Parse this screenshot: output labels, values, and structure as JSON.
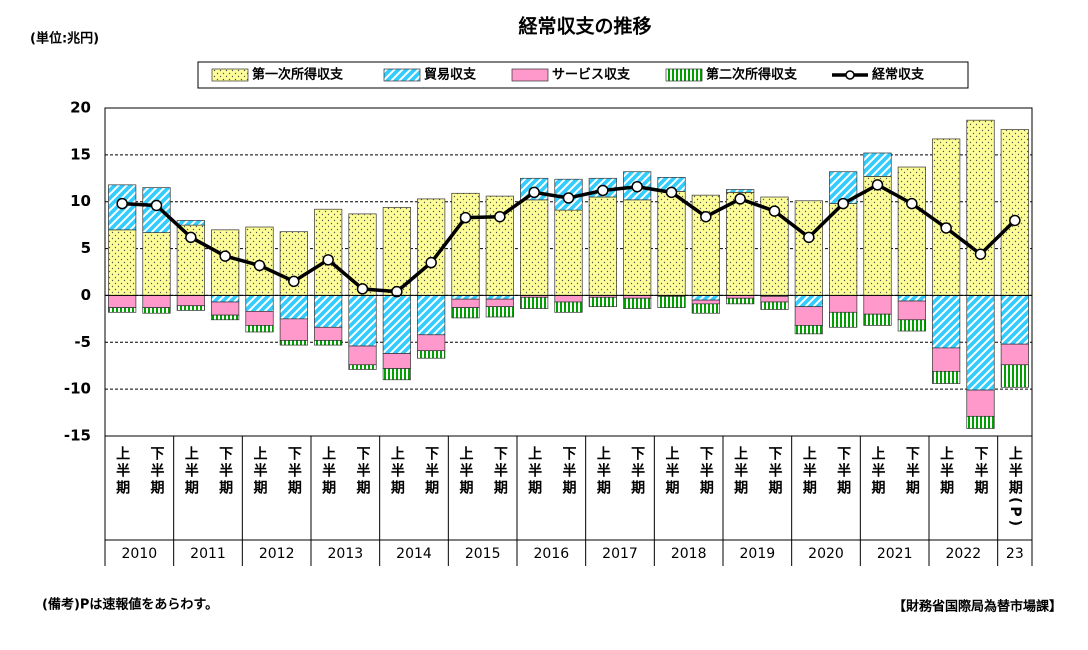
{
  "chart_data": {
    "type": "stacked_bar_line",
    "title": "経常収支の推移",
    "unit_label": "(単位:兆円)",
    "note": "(備考)Pは速報値をあらわす。",
    "source": "【財務省国際局為替市場課】",
    "categories": [
      "上半期",
      "下半期",
      "上半期",
      "下半期",
      "上半期",
      "下半期",
      "上半期",
      "下半期",
      "上半期",
      "下半期",
      "上半期",
      "下半期",
      "上半期",
      "下半期",
      "上半期",
      "下半期",
      "上半期",
      "下半期",
      "上半期",
      "下半期",
      "上半期",
      "下半期",
      "上半期",
      "下半期",
      "上半期",
      "下半期",
      "上半期(P)"
    ],
    "years": [
      "2010",
      "2011",
      "2012",
      "2013",
      "2014",
      "2015",
      "2016",
      "2017",
      "2018",
      "2019",
      "2020",
      "2021",
      "2022",
      "23"
    ],
    "series": [
      {
        "name": "第一次所得収支",
        "color": "#ffff99",
        "pattern": "dots",
        "values": [
          7.0,
          6.7,
          7.5,
          7.0,
          7.3,
          6.8,
          9.2,
          8.7,
          9.4,
          10.3,
          10.9,
          10.6,
          10.2,
          9.1,
          10.5,
          10.2,
          11.1,
          10.7,
          11.0,
          10.5,
          10.1,
          9.8,
          12.7,
          13.7,
          16.7,
          18.7,
          17.7
        ]
      },
      {
        "name": "貿易収支",
        "color": "#33ccff",
        "pattern": "diagonal",
        "values": [
          4.8,
          4.8,
          0.5,
          -0.7,
          -1.7,
          -2.5,
          -3.4,
          -5.4,
          -6.2,
          -4.2,
          -0.4,
          -0.4,
          2.3,
          3.3,
          2.0,
          3.0,
          1.5,
          -0.5,
          0.3,
          -0.1,
          -1.2,
          3.4,
          2.5,
          -0.6,
          -5.6,
          -10.1,
          -5.2
        ]
      },
      {
        "name": "サービス収支",
        "color": "#ff99cc",
        "pattern": "solid",
        "values": [
          -1.3,
          -1.3,
          -1.1,
          -1.4,
          -1.5,
          -2.3,
          -1.4,
          -2.0,
          -1.6,
          -1.7,
          -0.9,
          -0.8,
          -0.2,
          -0.7,
          -0.2,
          -0.3,
          -0.1,
          -0.4,
          -0.3,
          -0.6,
          -2.0,
          -1.8,
          -2.0,
          -2.0,
          -2.5,
          -2.8,
          -2.2
        ]
      },
      {
        "name": "第二次所得収支",
        "color": "#00a000",
        "pattern": "vertical",
        "values": [
          -0.5,
          -0.6,
          -0.5,
          -0.5,
          -0.7,
          -0.5,
          -0.5,
          -0.5,
          -1.2,
          -0.8,
          -1.1,
          -1.1,
          -1.2,
          -1.1,
          -1.0,
          -1.1,
          -1.2,
          -1.0,
          -0.6,
          -0.8,
          -0.9,
          -1.6,
          -1.2,
          -1.2,
          -1.3,
          -1.3,
          -2.4
        ]
      },
      {
        "name": "経常収支",
        "color": "#000000",
        "kind": "line",
        "values": [
          9.8,
          9.6,
          6.2,
          4.2,
          3.2,
          1.5,
          3.8,
          0.7,
          0.4,
          3.5,
          8.3,
          8.4,
          11.0,
          10.4,
          11.2,
          11.6,
          11.0,
          8.4,
          10.3,
          9.0,
          6.2,
          9.8,
          11.8,
          9.8,
          7.2,
          4.4,
          8.0
        ]
      }
    ],
    "ylim": [
      -15,
      20
    ],
    "yticks": [
      -15,
      -10,
      -5,
      0,
      5,
      10,
      15,
      20
    ],
    "grid": true
  }
}
